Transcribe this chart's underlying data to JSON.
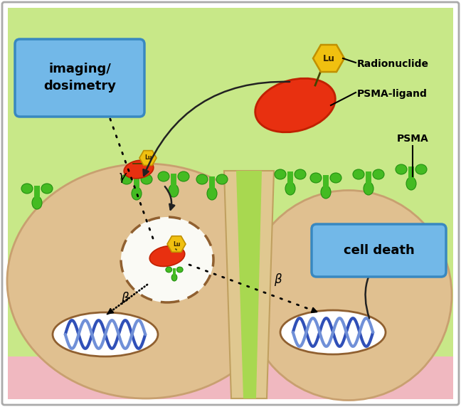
{
  "bg_green": "#c8e888",
  "bg_cell_tan": "#c8a070",
  "bg_cell_fill": "#e0c090",
  "bg_pink": "#f0b8c0",
  "bg_white": "#ffffff",
  "frame_color": "#aaaaaa",
  "red_capsule": "#e83010",
  "red_capsule_edge": "#c02000",
  "yellow_hex": "#f0c010",
  "yellow_hex_edge": "#c09000",
  "green_receptor": "#44bb22",
  "green_receptor_edge": "#229010",
  "blue_box_bg": "#72b8e8",
  "blue_box_border": "#3888c0",
  "dna_dark": "#3050b8",
  "dna_light": "#7090d8",
  "neck_fill": "#e0c890",
  "neck_edge": "#c0a060",
  "neck_green": "#a8d850",
  "text_dark": "#111111",
  "imaging_text": "imaging/\ndosimetry",
  "cell_death_text": "cell death",
  "radionuclide_label": "Radionuclide",
  "psma_ligand_label": "PSMA-ligand",
  "psma_label": "PSMA",
  "gamma_sym": "γ",
  "beta_sym": "β"
}
